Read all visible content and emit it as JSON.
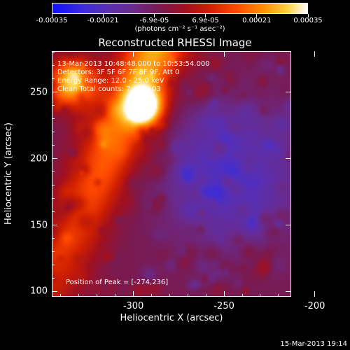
{
  "colorbar": {
    "ticks": [
      "-0.00035",
      "-0.00021",
      "-6.9e-05",
      "6.9e-05",
      "0.00021",
      "0.00035"
    ],
    "unit": "(photons cm⁻² s⁻¹ asec⁻²)"
  },
  "chart_data": {
    "type": "heatmap",
    "title": "Reconstructed RHESSI Image",
    "xlabel": "Heliocentric X (arcsec)",
    "ylabel": "Heliocentric Y (arcsec)",
    "xlim": [
      -345,
      -213
    ],
    "ylim": [
      96,
      281
    ],
    "xticks": [
      "-300",
      "-250",
      "-200"
    ],
    "xtick_values": [
      -300,
      -250,
      -200
    ],
    "yticks": [
      "100",
      "150",
      "200",
      "250"
    ],
    "ytick_values": [
      100,
      150,
      200,
      250
    ],
    "value_range": [
      -0.00035,
      0.00035
    ],
    "peak": [
      -274,
      236
    ]
  },
  "annotations": {
    "time": "13-Mar-2013 10:48:48.000 to 10:53:54.000",
    "detectors": "Detectors: 3F 5F 6F 7F 8F 9F, Att 0",
    "energy": "Energy Range: 12.0 - 25.0 keV",
    "clean": "Clean      Total counts: 7.53E+03",
    "peak": "Position of Peak = [-274,236]"
  },
  "footer": {
    "timestamp": "15-Mar-2013 19:14"
  }
}
